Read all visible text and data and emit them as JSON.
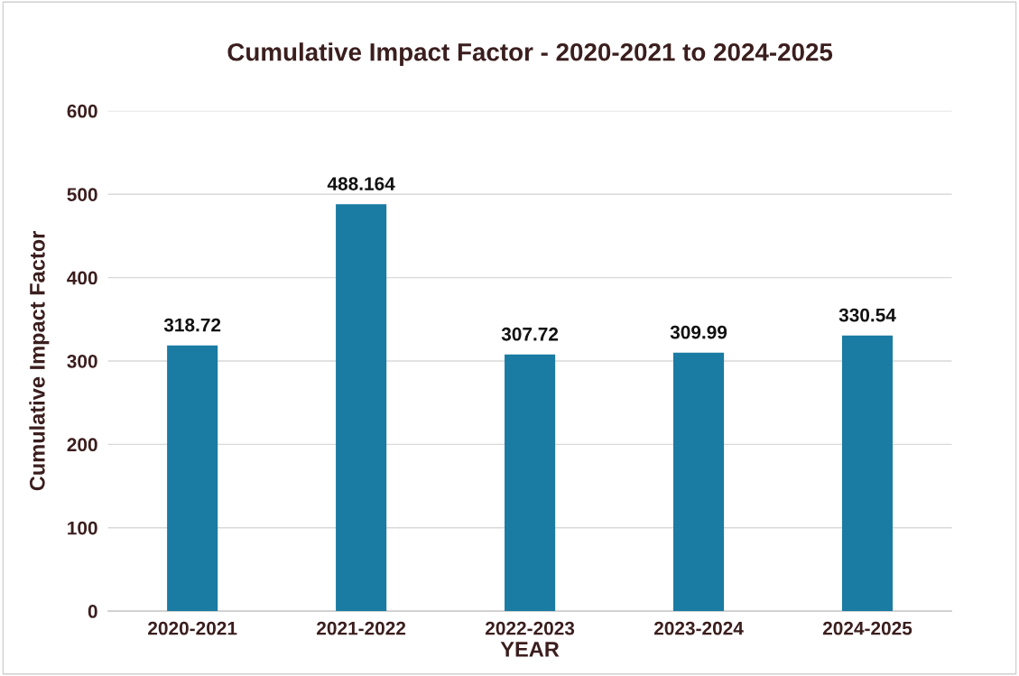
{
  "chart_data": {
    "type": "bar",
    "title": "Cumulative Impact Factor - 2020-2021 to 2024-2025",
    "xlabel": "YEAR",
    "ylabel": "Cumulative Impact Factor",
    "categories": [
      "2020-2021",
      "2021-2022",
      "2022-2023",
      "2023-2024",
      "2024-2025"
    ],
    "values": [
      318.72,
      488.164,
      307.72,
      309.99,
      330.54
    ],
    "color": "#1a7ba3",
    "ylim": [
      0,
      600
    ],
    "yticks": [
      0,
      100,
      200,
      300,
      400,
      500,
      600
    ],
    "grid": "y",
    "data_labels": true,
    "legend": false
  }
}
